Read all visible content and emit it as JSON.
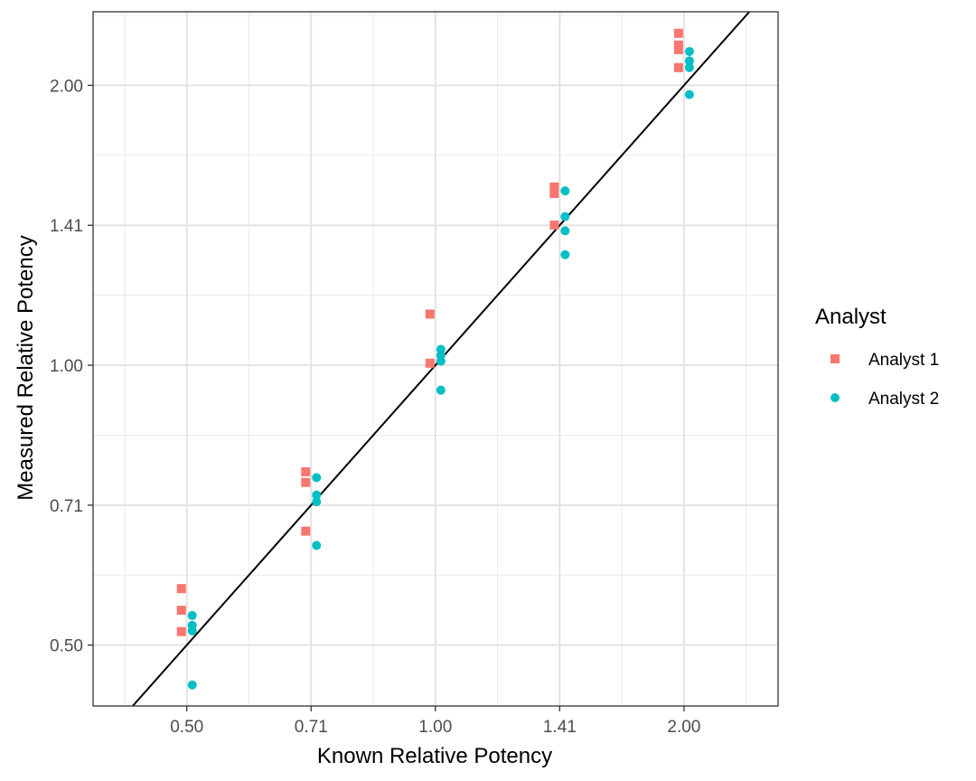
{
  "chart_data": {
    "type": "scatter",
    "scale": "log2",
    "xlabel": "Known Relative Potency",
    "ylabel": "Measured Relative Potency",
    "x_ticks": [
      {
        "value": 0.5,
        "label": "0.50"
      },
      {
        "value": 0.7071,
        "label": "0.71"
      },
      {
        "value": 1.0,
        "label": "1.00"
      },
      {
        "value": 1.4142,
        "label": "1.41"
      },
      {
        "value": 2.0,
        "label": "2.00"
      }
    ],
    "y_ticks": [
      {
        "value": 0.5,
        "label": "0.50"
      },
      {
        "value": 0.7071,
        "label": "0.71"
      },
      {
        "value": 1.0,
        "label": "1.00"
      },
      {
        "value": 1.4142,
        "label": "1.41"
      },
      {
        "value": 2.0,
        "label": "2.00"
      }
    ],
    "xlim": [
      0.385,
      2.6
    ],
    "ylim": [
      0.43,
      2.4
    ],
    "grid": true,
    "reference_line": {
      "slope": 1,
      "intercept": 0,
      "label": "y = x"
    },
    "legend": {
      "title": "Analyst",
      "position": "right"
    },
    "series": [
      {
        "name": "Analyst 1",
        "shape": "square",
        "color": "#F8766D",
        "points": [
          {
            "x": 0.5,
            "y": 0.575
          },
          {
            "x": 0.5,
            "y": 0.545
          },
          {
            "x": 0.5,
            "y": 0.517
          },
          {
            "x": 0.7071,
            "y": 0.768
          },
          {
            "x": 0.7071,
            "y": 0.748
          },
          {
            "x": 0.7071,
            "y": 0.663
          },
          {
            "x": 1.0,
            "y": 1.135
          },
          {
            "x": 1.0,
            "y": 1.005
          },
          {
            "x": 1.4142,
            "y": 1.555
          },
          {
            "x": 1.4142,
            "y": 1.53
          },
          {
            "x": 1.4142,
            "y": 1.415
          },
          {
            "x": 2.0,
            "y": 2.275
          },
          {
            "x": 2.0,
            "y": 2.21
          },
          {
            "x": 2.0,
            "y": 2.185
          },
          {
            "x": 2.0,
            "y": 2.09
          }
        ]
      },
      {
        "name": "Analyst 2",
        "shape": "circle",
        "color": "#00BFC4",
        "points": [
          {
            "x": 0.5,
            "y": 0.538
          },
          {
            "x": 0.5,
            "y": 0.525
          },
          {
            "x": 0.5,
            "y": 0.518
          },
          {
            "x": 0.5,
            "y": 0.453
          },
          {
            "x": 0.7071,
            "y": 0.757
          },
          {
            "x": 0.7071,
            "y": 0.725
          },
          {
            "x": 0.7071,
            "y": 0.713
          },
          {
            "x": 0.7071,
            "y": 0.64
          },
          {
            "x": 1.0,
            "y": 1.04
          },
          {
            "x": 1.0,
            "y": 1.025
          },
          {
            "x": 1.0,
            "y": 1.01
          },
          {
            "x": 1.0,
            "y": 0.94
          },
          {
            "x": 1.4142,
            "y": 1.54
          },
          {
            "x": 1.4142,
            "y": 1.445
          },
          {
            "x": 1.4142,
            "y": 1.395
          },
          {
            "x": 1.4142,
            "y": 1.315
          },
          {
            "x": 2.0,
            "y": 2.175
          },
          {
            "x": 2.0,
            "y": 2.125
          },
          {
            "x": 2.0,
            "y": 2.09
          },
          {
            "x": 2.0,
            "y": 1.955
          }
        ]
      }
    ]
  }
}
